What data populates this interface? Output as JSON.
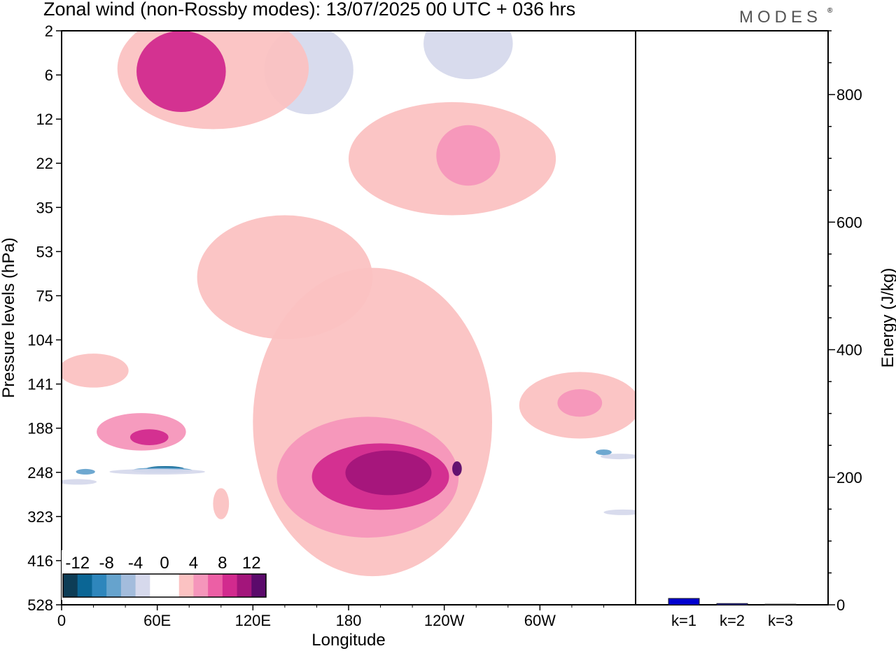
{
  "title": "Zonal wind (non-Rossby modes):  13/07/2025  00 UTC  + 036 hrs",
  "brand": "MODES",
  "brand_mark": "®",
  "chart_data": [
    {
      "type": "heatmap",
      "title": "Zonal wind (non-Rossby modes):  13/07/2025  00 UTC  + 036 hrs",
      "xlabel": "Longitude",
      "ylabel": "Pressure levels (hPa)",
      "x_ticks": [
        "0",
        "60E",
        "120E",
        "180",
        "120W",
        "60W"
      ],
      "x_tick_values": [
        0,
        60,
        120,
        180,
        240,
        300
      ],
      "xlim": [
        0,
        360
      ],
      "y_ticks": [
        "2",
        "6",
        "12",
        "22",
        "35",
        "53",
        "75",
        "104",
        "141",
        "188",
        "248",
        "323",
        "416",
        "528"
      ],
      "colorbar": {
        "labels": [
          "-12",
          "-8",
          "-4",
          "0",
          "4",
          "8",
          "12"
        ],
        "colors": [
          "#0d3d56",
          "#0b6695",
          "#2e86bc",
          "#66a3cd",
          "#a3bcdc",
          "#d6d9ec",
          "#ffffff",
          "#ffffff",
          "#fbc2c2",
          "#f596bb",
          "#ec5fa5",
          "#d22a8e",
          "#a3157b",
          "#5b0a6b"
        ]
      },
      "regions": [
        {
          "level": -12,
          "x": 65,
          "y": 141,
          "rx": 12,
          "ry": 1.6
        },
        {
          "level": -8,
          "x": 63,
          "y": 143,
          "rx": 19,
          "ry": 2.1
        },
        {
          "level": -4,
          "x": 60,
          "y": 145,
          "rx": 30,
          "ry": 3.0
        },
        {
          "level": -4,
          "x": 10,
          "y": 160,
          "rx": 12,
          "ry": 2.8
        },
        {
          "level": -8,
          "x": 15,
          "y": 145,
          "rx": 6,
          "ry": 1.5
        },
        {
          "level": -4,
          "x": 350,
          "y": 125,
          "rx": 12,
          "ry": 2.0
        },
        {
          "level": -8,
          "x": 340,
          "y": 120,
          "rx": 5,
          "ry": 1.0
        },
        {
          "level": -4,
          "x": 352,
          "y": 215,
          "rx": 12,
          "ry": 1.6
        },
        {
          "level": -4,
          "x": 155,
          "y": 3.2,
          "rx": 28,
          "ry": 1.3
        },
        {
          "level": -4,
          "x": 255,
          "y": 2.4,
          "rx": 28,
          "ry": 0.8
        },
        {
          "level": -2,
          "x": 130,
          "y": 10,
          "rx": 50,
          "ry": 4
        },
        {
          "level": -2,
          "x": 310,
          "y": 60,
          "rx": 40,
          "ry": 30
        },
        {
          "level": -2,
          "x": 290,
          "y": 380,
          "rx": 12,
          "ry": 110
        },
        {
          "level": -2,
          "x": 130,
          "y": 330,
          "rx": 12,
          "ry": 80
        },
        {
          "level": -2,
          "x": 215,
          "y": 75,
          "rx": 35,
          "ry": 12
        },
        {
          "level": 2,
          "x": 195,
          "y": 210,
          "rx": 75,
          "ry": 190
        },
        {
          "level": 4,
          "x": 192,
          "y": 180,
          "rx": 57,
          "ry": 95
        },
        {
          "level": 8,
          "x": 200,
          "y": 160,
          "rx": 43,
          "ry": 50
        },
        {
          "level": 10,
          "x": 205,
          "y": 150,
          "rx": 27,
          "ry": 32
        },
        {
          "level": 12,
          "x": 248,
          "y": 141,
          "rx": 3,
          "ry": 10
        },
        {
          "level": 4,
          "x": 50,
          "y": 100,
          "rx": 28,
          "ry": 18
        },
        {
          "level": 8,
          "x": 55,
          "y": 104,
          "rx": 12,
          "ry": 8
        },
        {
          "level": 2,
          "x": 325,
          "y": 80,
          "rx": 38,
          "ry": 25
        },
        {
          "level": 4,
          "x": 325,
          "y": 75,
          "rx": 14,
          "ry": 10
        },
        {
          "level": 2,
          "x": 95,
          "y": 3.4,
          "rx": 60,
          "ry": 1.8
        },
        {
          "level": 8,
          "x": 75,
          "y": 3.2,
          "rx": 28,
          "ry": 1.2
        },
        {
          "level": 2,
          "x": 245,
          "y": 8,
          "rx": 65,
          "ry": 4
        },
        {
          "level": 4,
          "x": 255,
          "y": 7,
          "rx": 20,
          "ry": 2
        },
        {
          "level": 2,
          "x": 140,
          "y": 26,
          "rx": 55,
          "ry": 14
        },
        {
          "level": 2,
          "x": 20,
          "y": 55,
          "rx": 22,
          "ry": 9
        },
        {
          "level": 2,
          "x": 100,
          "y": 200,
          "rx": 5,
          "ry": 30
        }
      ]
    },
    {
      "type": "bar",
      "categories": [
        "k=1",
        "k=2",
        "k=3"
      ],
      "values": [
        10,
        2,
        1
      ],
      "ylabel": "Energy (J/kg)",
      "ylim": [
        0,
        900
      ],
      "y_ticks": [
        "0",
        "200",
        "400",
        "600",
        "800"
      ],
      "color": "#0000d0"
    }
  ]
}
